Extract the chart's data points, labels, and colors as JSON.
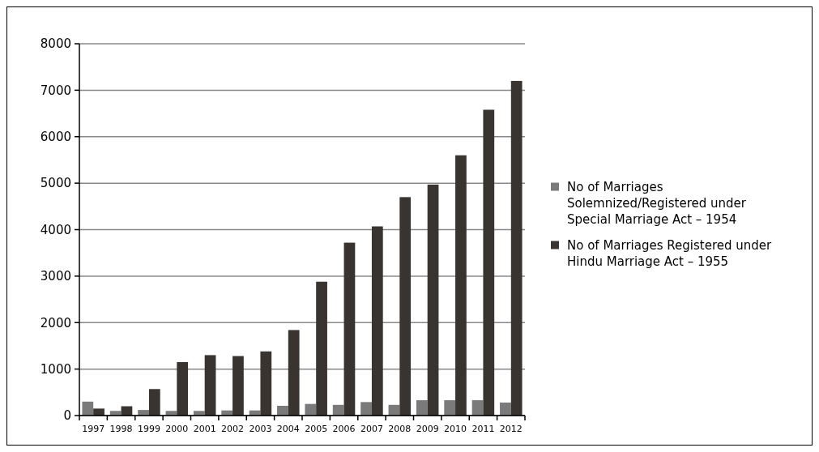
{
  "chart_data": {
    "type": "bar",
    "categories": [
      "1997",
      "1998",
      "1999",
      "2000",
      "2001",
      "2002",
      "2003",
      "2004",
      "2005",
      "2006",
      "2007",
      "2008",
      "2009",
      "2010",
      "2011",
      "2012"
    ],
    "series": [
      {
        "name": "No of Marriages Solemnized/Registered under Special Marriage Act – 1954",
        "color": "#7a7a7a",
        "values": [
          300,
          100,
          120,
          100,
          100,
          110,
          110,
          210,
          250,
          230,
          290,
          230,
          330,
          330,
          330,
          280
        ]
      },
      {
        "name": "No of Marriages Registered under Hindu Marriage Act – 1955",
        "color": "#3a3431",
        "values": [
          150,
          200,
          570,
          1150,
          1300,
          1280,
          1380,
          1840,
          2880,
          3720,
          4070,
          4700,
          4970,
          5600,
          6580,
          7200
        ]
      }
    ],
    "ylim": [
      0,
      8000
    ],
    "yticks": [
      0,
      1000,
      2000,
      3000,
      4000,
      5000,
      6000,
      7000,
      8000
    ],
    "grid": "y",
    "legend": "right"
  }
}
